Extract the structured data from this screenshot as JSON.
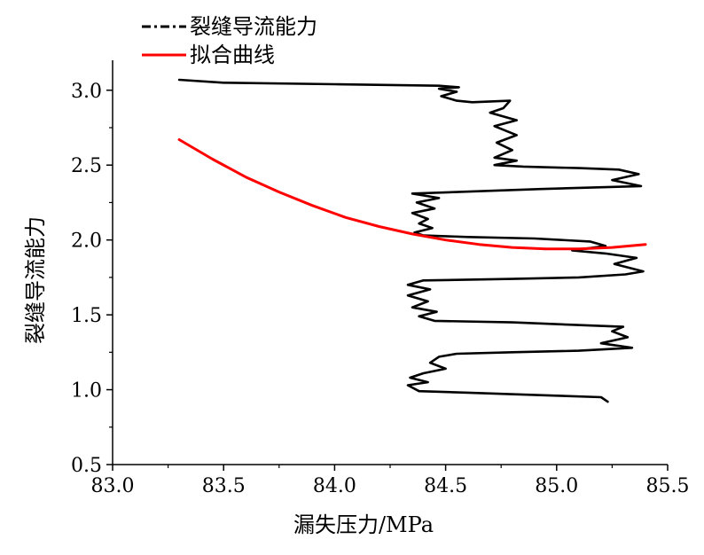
{
  "chart_data": {
    "type": "line",
    "xlabel": "漏失压力/MPa",
    "ylabel": "裂缝导流能力",
    "xlim": [
      83.0,
      85.5
    ],
    "ylim": [
      0.5,
      3.2
    ],
    "x_ticks": [
      "83.0",
      "83.5",
      "84.0",
      "84.5",
      "85.0",
      "85.5"
    ],
    "y_ticks": [
      "0.5",
      "1.0",
      "1.5",
      "2.0",
      "2.5",
      "3.0"
    ],
    "grid": false,
    "legend_position": "top-left",
    "series": [
      {
        "name": "裂缝导流能力",
        "color": "#000000",
        "points": [
          [
            83.3,
            3.07
          ],
          [
            83.5,
            3.05
          ],
          [
            84.0,
            3.04
          ],
          [
            84.47,
            3.03
          ],
          [
            84.56,
            3.02
          ],
          [
            84.47,
            3.01
          ],
          [
            84.55,
            2.99
          ],
          [
            84.48,
            2.96
          ],
          [
            84.55,
            2.93
          ],
          [
            84.62,
            2.92
          ],
          [
            84.79,
            2.93
          ],
          [
            84.76,
            2.88
          ],
          [
            84.7,
            2.85
          ],
          [
            84.82,
            2.8
          ],
          [
            84.72,
            2.76
          ],
          [
            84.82,
            2.7
          ],
          [
            84.73,
            2.65
          ],
          [
            84.8,
            2.6
          ],
          [
            84.72,
            2.55
          ],
          [
            84.82,
            2.53
          ],
          [
            84.72,
            2.5
          ],
          [
            84.85,
            2.49
          ],
          [
            85.1,
            2.48
          ],
          [
            85.28,
            2.47
          ],
          [
            85.37,
            2.44
          ],
          [
            85.25,
            2.4
          ],
          [
            85.38,
            2.36
          ],
          [
            84.93,
            2.34
          ],
          [
            84.55,
            2.32
          ],
          [
            84.35,
            2.31
          ],
          [
            84.47,
            2.28
          ],
          [
            84.37,
            2.25
          ],
          [
            84.45,
            2.21
          ],
          [
            84.35,
            2.18
          ],
          [
            84.42,
            2.14
          ],
          [
            84.38,
            2.11
          ],
          [
            84.44,
            2.08
          ],
          [
            84.36,
            2.05
          ],
          [
            84.4,
            2.03
          ],
          [
            84.6,
            2.02
          ],
          [
            84.9,
            2.01
          ],
          [
            85.15,
            1.99
          ],
          [
            85.22,
            1.96
          ],
          [
            85.07,
            1.93
          ],
          [
            85.22,
            1.91
          ],
          [
            85.36,
            1.88
          ],
          [
            85.26,
            1.84
          ],
          [
            85.39,
            1.79
          ],
          [
            85.31,
            1.77
          ],
          [
            85.1,
            1.75
          ],
          [
            84.8,
            1.74
          ],
          [
            84.4,
            1.73
          ],
          [
            84.33,
            1.7
          ],
          [
            84.43,
            1.67
          ],
          [
            84.33,
            1.63
          ],
          [
            84.42,
            1.59
          ],
          [
            84.35,
            1.55
          ],
          [
            84.46,
            1.52
          ],
          [
            84.38,
            1.49
          ],
          [
            84.45,
            1.46
          ],
          [
            84.8,
            1.45
          ],
          [
            85.3,
            1.42
          ],
          [
            85.25,
            1.39
          ],
          [
            85.32,
            1.35
          ],
          [
            85.2,
            1.31
          ],
          [
            85.34,
            1.28
          ],
          [
            85.1,
            1.26
          ],
          [
            84.8,
            1.25
          ],
          [
            84.55,
            1.24
          ],
          [
            84.47,
            1.22
          ],
          [
            84.43,
            1.18
          ],
          [
            84.5,
            1.14
          ],
          [
            84.4,
            1.11
          ],
          [
            84.34,
            1.08
          ],
          [
            84.42,
            1.05
          ],
          [
            84.33,
            1.03
          ],
          [
            84.38,
            0.99
          ],
          [
            84.6,
            0.98
          ],
          [
            85.0,
            0.96
          ],
          [
            85.2,
            0.95
          ],
          [
            85.23,
            0.92
          ]
        ]
      },
      {
        "name": "拟合曲线",
        "color": "#ff0000",
        "points": [
          [
            83.3,
            2.67
          ],
          [
            83.45,
            2.54
          ],
          [
            83.6,
            2.42
          ],
          [
            83.75,
            2.32
          ],
          [
            83.9,
            2.23
          ],
          [
            84.05,
            2.15
          ],
          [
            84.2,
            2.09
          ],
          [
            84.35,
            2.04
          ],
          [
            84.5,
            2.0
          ],
          [
            84.65,
            1.97
          ],
          [
            84.8,
            1.95
          ],
          [
            84.95,
            1.94
          ],
          [
            85.1,
            1.94
          ],
          [
            85.25,
            1.95
          ],
          [
            85.4,
            1.97
          ]
        ]
      }
    ]
  }
}
